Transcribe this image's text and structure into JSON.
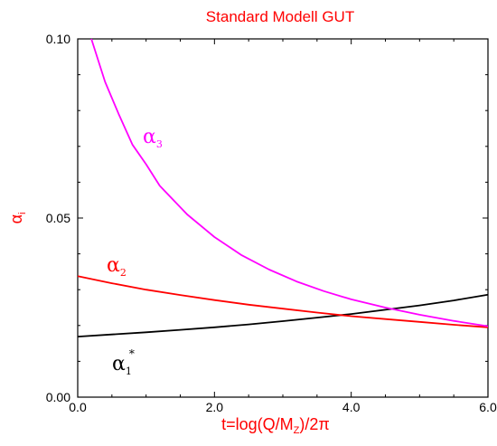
{
  "chart_data": {
    "type": "line",
    "title": "Standard Modell GUT",
    "xlabel": "t=log(Q/M_Z)/2π",
    "ylabel": "α_i",
    "xlim": [
      0.0,
      6.0
    ],
    "ylim": [
      0.0,
      0.1
    ],
    "xticks": [
      "0.0",
      "2.0",
      "4.0",
      "6.0"
    ],
    "yticks": [
      "0.00",
      "0.05",
      "0.10"
    ],
    "grid": false,
    "series": [
      {
        "name": "α1*",
        "color": "#000000",
        "x": [
          0.0,
          0.5,
          1.0,
          1.5,
          2.0,
          2.5,
          3.0,
          3.5,
          4.0,
          4.5,
          5.0,
          5.5,
          6.0
        ],
        "y": [
          0.0169,
          0.0175,
          0.0181,
          0.0188,
          0.0195,
          0.0203,
          0.0212,
          0.0222,
          0.0232,
          0.0244,
          0.0256,
          0.027,
          0.0286
        ]
      },
      {
        "name": "α2",
        "color": "#ff0000",
        "x": [
          0.0,
          0.5,
          1.0,
          1.5,
          2.0,
          2.5,
          3.0,
          3.5,
          4.0,
          4.5,
          5.0,
          5.5,
          6.0
        ],
        "y": [
          0.0338,
          0.0318,
          0.03,
          0.0285,
          0.0271,
          0.0258,
          0.0247,
          0.0236,
          0.0226,
          0.0218,
          0.021,
          0.0202,
          0.0195
        ]
      },
      {
        "name": "α3",
        "color": "#ff00ff",
        "x": [
          0.2,
          0.4,
          0.6,
          0.8,
          1.0,
          1.2,
          1.6,
          2.0,
          2.4,
          2.8,
          3.2,
          3.6,
          4.0,
          4.5,
          5.0,
          5.5,
          6.0
        ],
        "y": [
          0.1,
          0.088,
          0.079,
          0.0705,
          0.065,
          0.059,
          0.051,
          0.0447,
          0.0396,
          0.0356,
          0.0323,
          0.0296,
          0.0273,
          0.025,
          0.023,
          0.0213,
          0.0198
        ]
      }
    ]
  }
}
